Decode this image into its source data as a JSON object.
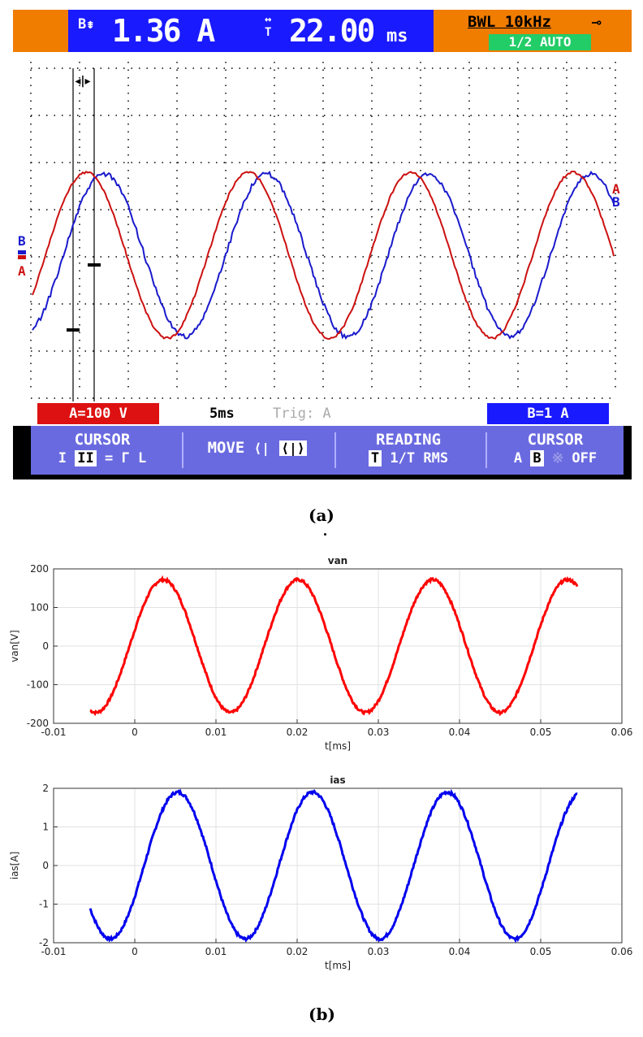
{
  "scope": {
    "readout_channel": "B",
    "readout_value": "1.36 A",
    "period_label": "T",
    "period_value": "22.00",
    "period_unit": "ms",
    "bwl": "BWL 10kHz",
    "mode": "1/2 AUTO",
    "channel_a_scale": "A=100 V",
    "timebase": "5ms",
    "trigger": "Trig: A",
    "channel_b_scale": "B=1 A",
    "marker_a": "A",
    "marker_b": "B",
    "menu": {
      "cursor_title": "CURSOR",
      "cursor_items": [
        "I",
        "II",
        "=",
        "Γ",
        "L"
      ],
      "move_title": "MOVE",
      "reading_title": "READING",
      "reading_items": [
        "T",
        "1/T",
        "RMS"
      ],
      "cursor2_title": "CURSOR",
      "cursor2_items": [
        "A",
        "B",
        "OFF"
      ]
    },
    "colors": {
      "voltage": "#cc1111",
      "current": "#1a1acc"
    }
  },
  "captions": {
    "a": "(a)",
    "b": "(b)"
  },
  "chart_data": [
    {
      "type": "line",
      "title": "van",
      "xlabel": "t[ms]",
      "ylabel": "van[V]",
      "xlim": [
        -0.01,
        0.06
      ],
      "ylim": [
        -200,
        200
      ],
      "xticks": [
        "-0.01",
        "0",
        "0.01",
        "0.02",
        "0.03",
        "0.04",
        "0.05",
        "0.06"
      ],
      "yticks": [
        "200",
        "100",
        "0",
        "-100",
        "-200"
      ],
      "grid": true,
      "color": "#ff0000",
      "series": [
        {
          "amplitude": 172,
          "period": 0.0166,
          "peak_t": 0.0035,
          "t_start": -0.0055,
          "t_end": 0.0545
        }
      ]
    },
    {
      "type": "line",
      "title": "ias",
      "xlabel": "t[ms]",
      "ylabel": "ias[A]",
      "xlim": [
        -0.01,
        0.06
      ],
      "ylim": [
        -2,
        2
      ],
      "xticks": [
        "-0.01",
        "0",
        "0.01",
        "0.02",
        "0.03",
        "0.04",
        "0.05",
        "0.06"
      ],
      "yticks": [
        "2",
        "1",
        "0",
        "-1",
        "-2"
      ],
      "grid": true,
      "color": "#0000ee",
      "series": [
        {
          "amplitude": 1.9,
          "period": 0.0166,
          "peak_t": 0.0053,
          "t_start": -0.0055,
          "t_end": 0.0545
        }
      ]
    }
  ]
}
